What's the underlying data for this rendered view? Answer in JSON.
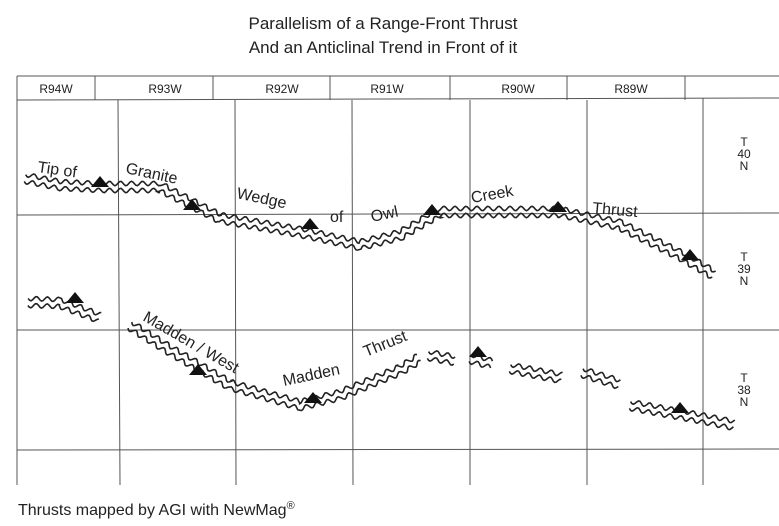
{
  "title": [
    "Parallelism of a Range-Front Thrust",
    "And an Anticlinal Trend in Front of it"
  ],
  "ranges": [
    "R94W",
    "R93W",
    "R92W",
    "R91W",
    "R90W",
    "R89W"
  ],
  "townships": [
    [
      "T",
      "40",
      "N"
    ],
    [
      "T",
      "39",
      "N"
    ],
    [
      "T",
      "38",
      "N"
    ]
  ],
  "thrust_labels": [
    "Tip of",
    "Granite",
    "Wedge",
    "of",
    "Owl",
    "Creek",
    "Thrust",
    "Madden / West",
    "Madden",
    "Thrust"
  ],
  "footer": {
    "text": "Thrusts mapped by AGI with NewMag",
    "mark": "®"
  }
}
